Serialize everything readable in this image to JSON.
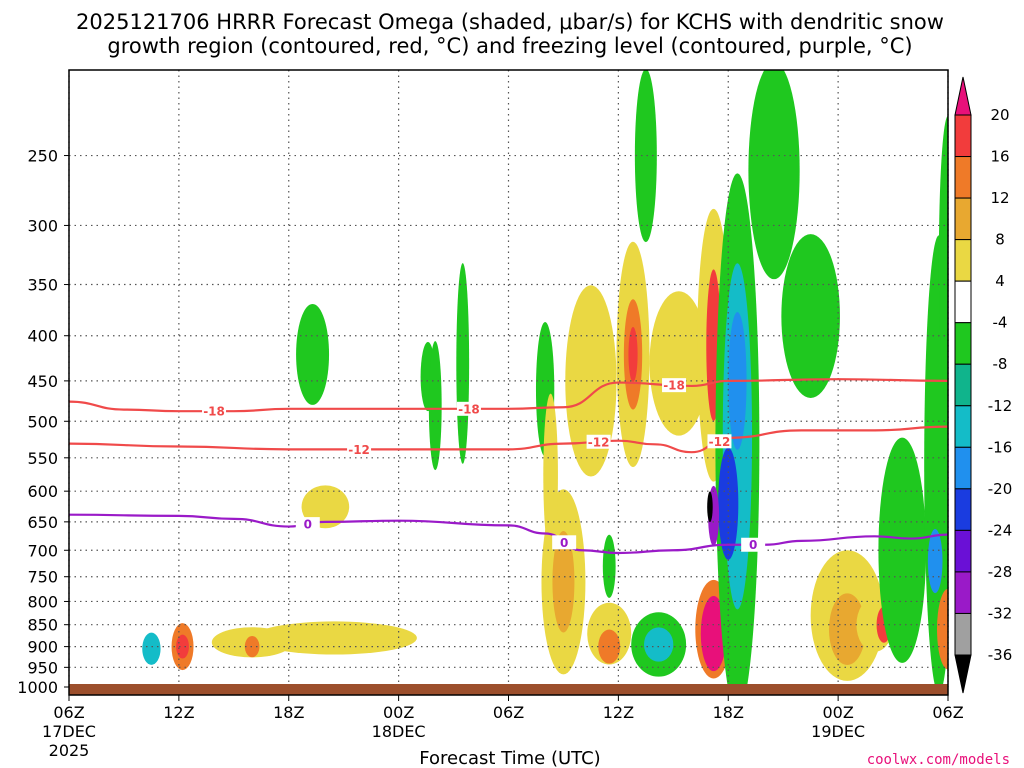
{
  "title_line1": "2025121706 HRRR Forecast Omega (shaded, μbar/s) for KCHS with dendritic snow",
  "title_line2": "growth region (contoured, red, °C) and freezing level (contoured, purple, °C)",
  "credit": "coolwx.com/models",
  "chart_data": {
    "type": "heatmap",
    "title": "2025121706 HRRR Forecast Omega (shaded, μbar/s) for KCHS with dendritic snow growth region (contoured, red, °C) and freezing level (contoured, purple, °C)",
    "xlabel": "Forecast Time (UTC)",
    "ylabel": "",
    "x_ticks": [
      {
        "hour": 0,
        "label": "06Z",
        "sub": "17DEC",
        "sub2": "2025"
      },
      {
        "hour": 6,
        "label": "12Z",
        "sub": "",
        "sub2": ""
      },
      {
        "hour": 12,
        "label": "18Z",
        "sub": "",
        "sub2": ""
      },
      {
        "hour": 18,
        "label": "00Z",
        "sub": "18DEC",
        "sub2": ""
      },
      {
        "hour": 24,
        "label": "06Z",
        "sub": "",
        "sub2": ""
      },
      {
        "hour": 30,
        "label": "12Z",
        "sub": "",
        "sub2": ""
      },
      {
        "hour": 36,
        "label": "18Z",
        "sub": "",
        "sub2": ""
      },
      {
        "hour": 42,
        "label": "00Z",
        "sub": "19DEC",
        "sub2": ""
      },
      {
        "hour": 48,
        "label": "06Z",
        "sub": "",
        "sub2": ""
      }
    ],
    "y_axis": {
      "scale": "log",
      "min_hpa": 200,
      "max_hpa": 1000,
      "inverted": true,
      "ticks": [
        "250",
        "300",
        "350",
        "400",
        "450",
        "500",
        "550",
        "600",
        "650",
        "700",
        "750",
        "800",
        "850",
        "900",
        "950",
        "1000"
      ]
    },
    "colorbar": {
      "labels": [
        "20",
        "16",
        "12",
        "8",
        "4",
        "-4",
        "-8",
        "-12",
        "-16",
        "-20",
        "-24",
        "-28",
        "-32",
        "-36"
      ],
      "bins": [
        {
          "range": ">20",
          "color": "#e8107a"
        },
        {
          "range": "16-20",
          "color": "#f23c3c"
        },
        {
          "range": "12-16",
          "color": "#ef7a28"
        },
        {
          "range": "8-12",
          "color": "#e8a830"
        },
        {
          "range": "4-8",
          "color": "#ead843"
        },
        {
          "range": "-4-4",
          "color": "#ffffff"
        },
        {
          "range": "-8--4",
          "color": "#1fc81f"
        },
        {
          "range": "-12--8",
          "color": "#10b48c"
        },
        {
          "range": "-16--12",
          "color": "#14bcc8"
        },
        {
          "range": "-20--16",
          "color": "#2090ee"
        },
        {
          "range": "-24--20",
          "color": "#1a3ce0"
        },
        {
          "range": "-28--24",
          "color": "#6a10d6"
        },
        {
          "range": "-32--28",
          "color": "#9a1ac8"
        },
        {
          "range": "-36--32",
          "color": "#a0a0a0"
        },
        {
          "range": "<-36",
          "color": "#000000"
        }
      ]
    },
    "contours": [
      {
        "name": "-18",
        "color": "#f04a4a",
        "label": "-18",
        "points": [
          [
            0,
            475
          ],
          [
            3,
            485
          ],
          [
            6,
            487
          ],
          [
            9,
            487
          ],
          [
            12,
            484
          ],
          [
            18,
            484
          ],
          [
            24,
            484
          ],
          [
            27,
            482
          ],
          [
            30,
            452
          ],
          [
            34,
            456
          ],
          [
            36,
            450
          ],
          [
            42,
            448
          ],
          [
            48,
            450
          ]
        ]
      },
      {
        "name": "-12",
        "color": "#f04a4a",
        "label": "-12",
        "points": [
          [
            0,
            530
          ],
          [
            6,
            534
          ],
          [
            12,
            538
          ],
          [
            18,
            538
          ],
          [
            24,
            538
          ],
          [
            27,
            530
          ],
          [
            30,
            526
          ],
          [
            32,
            531
          ],
          [
            34,
            542
          ],
          [
            36,
            522
          ],
          [
            40,
            512
          ],
          [
            44,
            512
          ],
          [
            48,
            507
          ]
        ]
      },
      {
        "name": "0",
        "color": "#9a1ac8",
        "label": "0",
        "points": [
          [
            0,
            638
          ],
          [
            6,
            640
          ],
          [
            9,
            645
          ],
          [
            12,
            658
          ],
          [
            14,
            650
          ],
          [
            18,
            648
          ],
          [
            24,
            656
          ],
          [
            26,
            670
          ],
          [
            28,
            700
          ],
          [
            30,
            705
          ],
          [
            33,
            700
          ],
          [
            36,
            690
          ],
          [
            38,
            690
          ],
          [
            40,
            683
          ],
          [
            44,
            675
          ],
          [
            46,
            679
          ],
          [
            48,
            672
          ]
        ]
      }
    ],
    "omega_blobs": [
      {
        "x": 4.5,
        "p": 905,
        "rx": 0.5,
        "ry": 38,
        "level": -12
      },
      {
        "x": 6.2,
        "p": 900,
        "rx": 0.6,
        "ry": 55,
        "level": 12
      },
      {
        "x": 6.2,
        "p": 900,
        "rx": 0.35,
        "ry": 28,
        "level": 16
      },
      {
        "x": 10.0,
        "p": 890,
        "rx": 2.2,
        "ry": 35,
        "level": 4
      },
      {
        "x": 14.5,
        "p": 880,
        "rx": 4.5,
        "ry": 38,
        "level": 4
      },
      {
        "x": 10.0,
        "p": 900,
        "rx": 0.4,
        "ry": 25,
        "level": 12
      },
      {
        "x": 14.0,
        "p": 625,
        "rx": 1.3,
        "ry": 35,
        "level": 4
      },
      {
        "x": 13.3,
        "p": 420,
        "rx": 0.9,
        "ry": 55,
        "level": -4
      },
      {
        "x": 19.6,
        "p": 445,
        "rx": 0.4,
        "ry": 40,
        "level": -4
      },
      {
        "x": 20.0,
        "p": 480,
        "rx": 0.35,
        "ry": 80,
        "level": -4
      },
      {
        "x": 27.0,
        "p": 760,
        "rx": 1.2,
        "ry": 180,
        "level": 4
      },
      {
        "x": 27.0,
        "p": 760,
        "rx": 0.6,
        "ry": 100,
        "level": 8
      },
      {
        "x": 28.5,
        "p": 450,
        "rx": 1.4,
        "ry": 110,
        "level": 4
      },
      {
        "x": 30.8,
        "p": 420,
        "rx": 0.9,
        "ry": 120,
        "level": 4
      },
      {
        "x": 30.8,
        "p": 420,
        "rx": 0.5,
        "ry": 60,
        "level": 12
      },
      {
        "x": 30.8,
        "p": 420,
        "rx": 0.25,
        "ry": 30,
        "level": 16
      },
      {
        "x": 33.3,
        "p": 430,
        "rx": 1.6,
        "ry": 80,
        "level": 4
      },
      {
        "x": 29.5,
        "p": 870,
        "rx": 1.2,
        "ry": 70,
        "level": 4
      },
      {
        "x": 29.5,
        "p": 900,
        "rx": 0.6,
        "ry": 40,
        "level": 12
      },
      {
        "x": 32.2,
        "p": 895,
        "rx": 1.5,
        "ry": 75,
        "level": -4
      },
      {
        "x": 32.2,
        "p": 895,
        "rx": 0.8,
        "ry": 40,
        "level": -12
      },
      {
        "x": 35.2,
        "p": 410,
        "rx": 0.9,
        "ry": 140,
        "level": 4
      },
      {
        "x": 35.2,
        "p": 410,
        "rx": 0.4,
        "ry": 80,
        "level": 16
      },
      {
        "x": 35.2,
        "p": 860,
        "rx": 1.0,
        "ry": 110,
        "level": 12
      },
      {
        "x": 35.2,
        "p": 870,
        "rx": 0.7,
        "ry": 85,
        "level": 20
      },
      {
        "x": 36.5,
        "p": 530,
        "rx": 1.2,
        "ry": 330,
        "level": -4
      },
      {
        "x": 36.5,
        "p": 520,
        "rx": 0.8,
        "ry": 220,
        "level": -12
      },
      {
        "x": 36.0,
        "p": 620,
        "rx": 0.55,
        "ry": 90,
        "level": -20
      },
      {
        "x": 35.2,
        "p": 640,
        "rx": 0.3,
        "ry": 50,
        "level": -28
      },
      {
        "x": 35.0,
        "p": 625,
        "rx": 0.15,
        "ry": 25,
        "level": -36
      },
      {
        "x": 36.5,
        "p": 450,
        "rx": 0.5,
        "ry": 80,
        "level": -16
      },
      {
        "x": 40.5,
        "p": 380,
        "rx": 1.6,
        "ry": 80,
        "level": -4
      },
      {
        "x": 42.5,
        "p": 830,
        "rx": 2.0,
        "ry": 140,
        "level": 4
      },
      {
        "x": 42.5,
        "p": 860,
        "rx": 1.0,
        "ry": 80,
        "level": 8
      },
      {
        "x": 44.0,
        "p": 850,
        "rx": 1.0,
        "ry": 60,
        "level": 4
      },
      {
        "x": 44.5,
        "p": 850,
        "rx": 0.4,
        "ry": 40,
        "level": 16
      },
      {
        "x": 45.5,
        "p": 700,
        "rx": 1.3,
        "ry": 200,
        "level": -4
      },
      {
        "x": 47.5,
        "p": 560,
        "rx": 0.8,
        "ry": 300,
        "level": -4
      },
      {
        "x": 47.3,
        "p": 720,
        "rx": 0.4,
        "ry": 60,
        "level": -16
      },
      {
        "x": 48.0,
        "p": 860,
        "rx": 0.6,
        "ry": 90,
        "level": 12
      },
      {
        "x": 26.0,
        "p": 460,
        "rx": 0.5,
        "ry": 80,
        "level": -4
      },
      {
        "x": 26.3,
        "p": 575,
        "rx": 0.4,
        "ry": 120,
        "level": 4
      },
      {
        "x": 29.5,
        "p": 730,
        "rx": 0.35,
        "ry": 60,
        "level": -4
      },
      {
        "x": 21.5,
        "p": 430,
        "rx": 0.35,
        "ry": 110,
        "level": -4
      },
      {
        "x": 31.5,
        "p": 250,
        "rx": 0.6,
        "ry": 80,
        "level": -4
      },
      {
        "x": 38.5,
        "p": 260,
        "rx": 1.4,
        "ry": 110,
        "level": -4
      },
      {
        "x": 48.0,
        "p": 330,
        "rx": 0.5,
        "ry": 120,
        "level": -4
      }
    ]
  }
}
